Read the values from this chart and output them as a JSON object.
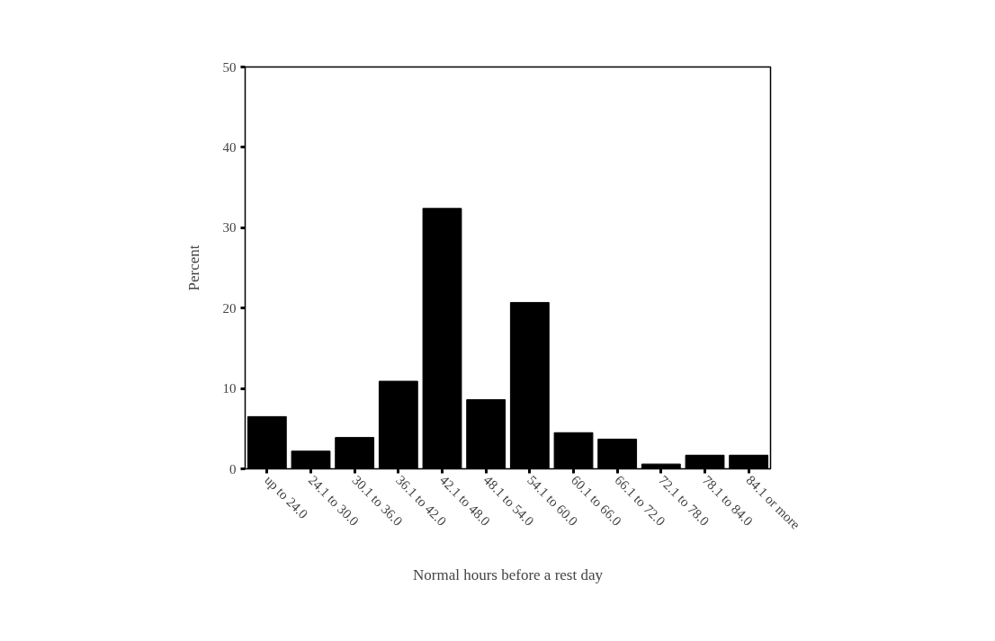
{
  "chart_data": {
    "type": "bar",
    "xlabel": "Normal hours before a rest day",
    "ylabel": "Percent",
    "categories": [
      "up to 24.0",
      "24.1 to 30.0",
      "30.1 to 36.0",
      "36.1 to 42.0",
      "42.1 to 48.0",
      "48.1 to 54.0",
      "54.1 to 60.0",
      "60.1 to 66.0",
      "66.1 to 72.0",
      "72.1 to 78.0",
      "78.1 to 84.0",
      "84.1 or more"
    ],
    "values": [
      6.5,
      2.2,
      3.9,
      10.9,
      32.4,
      8.6,
      20.7,
      4.5,
      3.7,
      0.6,
      1.7,
      1.7
    ],
    "color": "#000000",
    "ylim": [
      0,
      50
    ],
    "yticks": [
      0,
      10,
      20,
      30,
      40,
      50
    ],
    "grid": false
  }
}
